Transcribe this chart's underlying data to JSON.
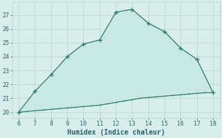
{
  "x_upper": [
    6,
    7,
    8,
    9,
    10,
    11,
    12,
    13,
    14,
    15,
    16,
    17,
    18
  ],
  "y_upper": [
    20.0,
    21.5,
    22.7,
    24.0,
    24.9,
    25.2,
    27.2,
    27.4,
    26.4,
    25.8,
    24.6,
    23.8,
    21.4
  ],
  "x_lower": [
    6,
    6.5,
    7,
    7.5,
    8,
    8.5,
    9,
    9.5,
    10,
    10.5,
    11,
    11.5,
    12,
    12.5,
    13,
    13.5,
    14,
    14.5,
    15,
    15.5,
    16,
    16.5,
    17,
    17.5,
    18
  ],
  "y_lower": [
    20.0,
    20.05,
    20.1,
    20.15,
    20.2,
    20.25,
    20.3,
    20.35,
    20.4,
    20.45,
    20.5,
    20.6,
    20.7,
    20.8,
    20.9,
    21.0,
    21.05,
    21.1,
    21.15,
    21.2,
    21.25,
    21.3,
    21.35,
    21.4,
    21.4
  ],
  "line_color": "#2a7a6a",
  "fill_color": "#c8e8e4",
  "bg_color": "#d8eeea",
  "grid_color": "#b8d8d2",
  "xlabel": "Humidex (Indice chaleur)",
  "xlim": [
    5.6,
    18.4
  ],
  "ylim": [
    19.6,
    27.9
  ],
  "xticks": [
    6,
    7,
    8,
    9,
    10,
    11,
    12,
    13,
    14,
    15,
    16,
    17,
    18
  ],
  "yticks": [
    20,
    21,
    22,
    23,
    24,
    25,
    26,
    27
  ],
  "font_color": "#2a5f6e",
  "marker": "+"
}
